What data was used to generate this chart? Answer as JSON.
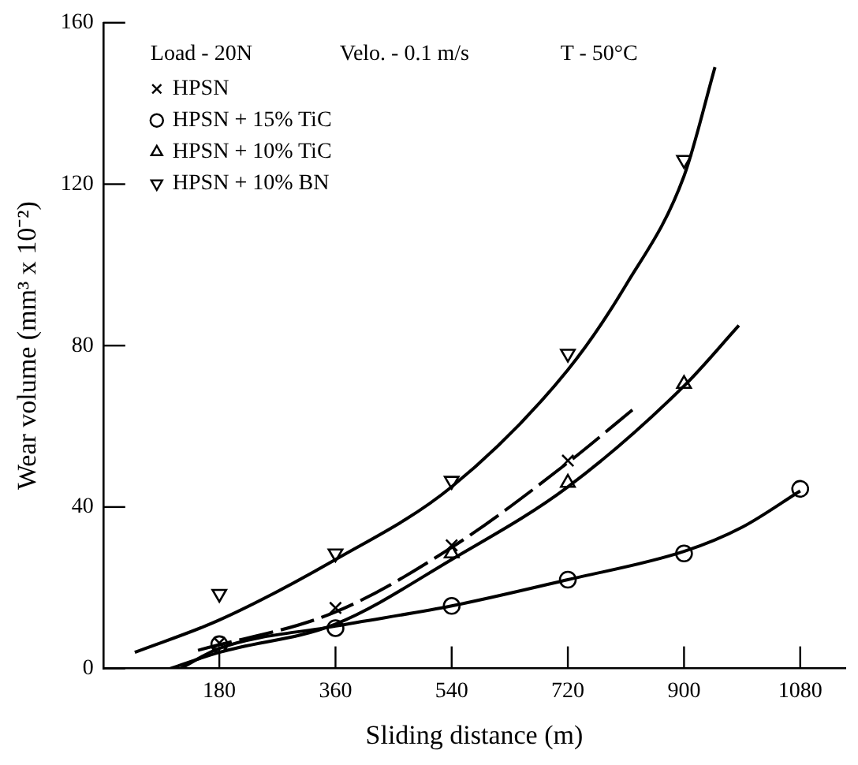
{
  "chart_data": {
    "type": "scatter",
    "xlabel": "Sliding distance (m)",
    "ylabel": "Wear volume (mm³ x 10⁻²)",
    "annotations": [
      "Load - 20N",
      "Velo. - 0.1 m/s",
      "T - 50°C"
    ],
    "xlim": [
      0,
      1150
    ],
    "xticks": [
      180,
      360,
      540,
      720,
      900,
      1080
    ],
    "ylim": [
      0,
      160
    ],
    "yticks": [
      0,
      40,
      80,
      120,
      160
    ],
    "grid": false,
    "legend": "top left",
    "color": "#000000",
    "series": [
      {
        "name": "HPSN",
        "marker": "cross",
        "x": [
          180,
          360,
          540,
          720
        ],
        "values": [
          6.3,
          15,
          30.5,
          51.5
        ]
      },
      {
        "name": "HPSN + 15% TiC",
        "marker": "circle",
        "x": [
          180,
          360,
          540,
          720,
          900,
          1080
        ],
        "values": [
          6,
          10,
          15.5,
          22,
          28.5,
          44.5
        ]
      },
      {
        "name": "HPSN + 10% TiC",
        "marker": "triangle",
        "x": [
          540,
          720,
          900
        ],
        "values": [
          28.5,
          46,
          70.5
        ]
      },
      {
        "name": "HPSN + 10% BN",
        "marker": "triangle-down",
        "x": [
          180,
          360,
          540,
          720,
          900
        ],
        "values": [
          18.5,
          28.5,
          46.5,
          78,
          126
        ]
      },
      {
        "type": "line",
        "marker": "none",
        "line_style": "dashed",
        "x": [
          147,
          360,
          540,
          720,
          827
        ],
        "values": [
          4.5,
          14,
          30,
          51,
          65
        ]
      },
      {
        "type": "line",
        "marker": "none",
        "line_style": "solid",
        "x": [
          120,
          180,
          360,
          540,
          720,
          900,
          990,
          1080
        ],
        "values": [
          0,
          5,
          10.5,
          15.5,
          22,
          29,
          35,
          44
        ]
      },
      {
        "type": "line",
        "marker": "none",
        "line_style": "solid",
        "x": [
          104,
          180,
          360,
          540,
          720,
          900,
          985
        ],
        "values": [
          0,
          4,
          11,
          27,
          45,
          70,
          85
        ]
      },
      {
        "type": "line",
        "marker": "none",
        "line_style": "solid",
        "x": [
          49,
          180,
          360,
          540,
          720,
          810,
          900,
          948
        ],
        "values": [
          4,
          12,
          27,
          45,
          74,
          95,
          122,
          149
        ]
      }
    ]
  }
}
